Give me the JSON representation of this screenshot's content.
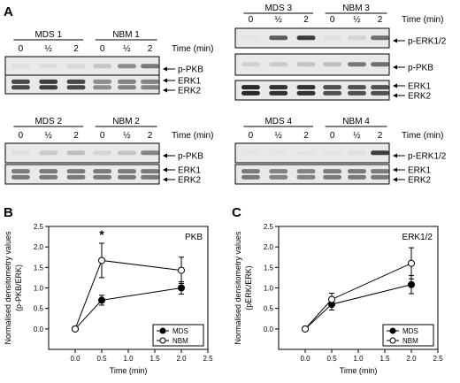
{
  "panel_letters": {
    "a": "A",
    "b": "B",
    "c": "C"
  },
  "blots": [
    {
      "groups": [
        {
          "name": "MDS 1"
        },
        {
          "name": "NBM 1"
        }
      ],
      "time_labels": [
        "0",
        "½",
        "2",
        "0",
        "½",
        "2"
      ],
      "time_unit_label": "Time (min)",
      "rows": [
        {
          "label_lines": [
            "p-PKB"
          ]
        },
        {
          "label_lines": [
            "ERK1",
            "ERK2"
          ]
        }
      ]
    },
    {
      "groups": [
        {
          "name": "MDS 3"
        },
        {
          "name": "NBM 3"
        }
      ],
      "time_labels": [
        "0",
        "½",
        "2",
        "0",
        "½",
        "2"
      ],
      "time_unit_label": "Time (min)",
      "rows": [
        {
          "label_lines": [
            "p-ERK1/2"
          ]
        },
        {
          "label_lines": [
            "p-PKB"
          ]
        },
        {
          "label_lines": [
            "ERK1",
            "ERK2"
          ]
        }
      ]
    },
    {
      "groups": [
        {
          "name": "MDS 2"
        },
        {
          "name": "NBM 2"
        }
      ],
      "time_labels": [
        "0",
        "½",
        "2",
        "0",
        "½",
        "2"
      ],
      "time_unit_label": "Time (min)",
      "rows": [
        {
          "label_lines": [
            "p-PKB"
          ]
        },
        {
          "label_lines": [
            "ERK1",
            "ERK2"
          ]
        }
      ]
    },
    {
      "groups": [
        {
          "name": "MDS 4"
        },
        {
          "name": "NBM 4"
        }
      ],
      "time_labels": [
        "0",
        "½",
        "2",
        "0",
        "½",
        "2"
      ],
      "time_unit_label": "Time (min)",
      "rows": [
        {
          "label_lines": [
            "p-ERK1/2"
          ]
        },
        {
          "label_lines": [
            "ERK1",
            "ERK2"
          ]
        }
      ]
    }
  ],
  "chart_data": [
    {
      "type": "line",
      "panel": "B",
      "title": "PKB",
      "xlabel": "Time (min)",
      "ylabel_lines": [
        "Normalised densitometry values",
        "(p-PKB/ERK)"
      ],
      "xlim": [
        -0.5,
        2.5
      ],
      "ylim": [
        -0.5,
        2.5
      ],
      "xticks": [
        "0.0",
        "0.5",
        "1.0",
        "1.5",
        "2.0",
        "2.5"
      ],
      "yticks": [
        "0.0",
        "0.5",
        "1.0",
        "1.5",
        "2.0",
        "2.5"
      ],
      "grid": false,
      "legend_position": "bottom-right",
      "annotations": [
        {
          "text": "*",
          "x": 0.5,
          "y": 2.2
        }
      ],
      "series": [
        {
          "name": "MDS",
          "marker": "filled-circle",
          "x": [
            0,
            0.5,
            2
          ],
          "y": [
            0,
            0.7,
            1.0
          ],
          "err": [
            0,
            0.12,
            0.15
          ]
        },
        {
          "name": "NBM",
          "marker": "open-circle",
          "x": [
            0,
            0.5,
            2
          ],
          "y": [
            0,
            1.67,
            1.43
          ],
          "err": [
            0,
            0.42,
            0.32
          ]
        }
      ]
    },
    {
      "type": "line",
      "panel": "C",
      "title": "ERK1/2",
      "xlabel": "Time (min)",
      "ylabel_lines": [
        "Normalised densitometry values",
        "(pERK/ERK)"
      ],
      "xlim": [
        -0.5,
        2.5
      ],
      "ylim": [
        -0.5,
        2.5
      ],
      "xticks": [
        "0.0",
        "0.5",
        "1.0",
        "1.5",
        "2.0",
        "2.5"
      ],
      "yticks": [
        "0.0",
        "0.5",
        "1.0",
        "1.5",
        "2.0",
        "2.5"
      ],
      "grid": false,
      "legend_position": "bottom-right",
      "annotations": [],
      "series": [
        {
          "name": "MDS",
          "marker": "filled-circle",
          "x": [
            0,
            0.5,
            2
          ],
          "y": [
            0,
            0.6,
            1.08
          ],
          "err": [
            0,
            0.14,
            0.22
          ]
        },
        {
          "name": "NBM",
          "marker": "open-circle",
          "x": [
            0,
            0.5,
            2
          ],
          "y": [
            0,
            0.72,
            1.6
          ],
          "err": [
            0,
            0.15,
            0.38
          ]
        }
      ]
    }
  ],
  "colors": {
    "ink": "#000000",
    "band": "#1e1e1e",
    "membrane": "#e9e9e9"
  }
}
